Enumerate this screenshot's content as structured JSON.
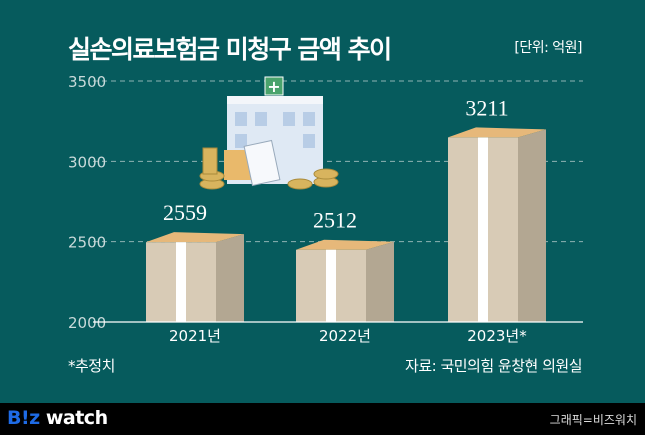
{
  "title": "실손의료보험금 미청구 금액 추이",
  "unit": "[단위: 억원]",
  "note": "*추정치",
  "source": "자료: 국민의힘 윤창현 의원실",
  "footer": {
    "logo_brand": "B!z",
    "logo_word": "watch",
    "credit": "그래픽=비즈워치"
  },
  "colors": {
    "background": "#065b5d",
    "bar_front": "#d8cbb6",
    "bar_side": "#b3a792",
    "band": "#ffffff",
    "footer": "#000000"
  },
  "chart_data": {
    "type": "bar",
    "title": "실손의료보험금 미청구 금액 추이",
    "categories": [
      "2021년",
      "2022년",
      "2023년*"
    ],
    "values": [
      2559,
      2512,
      3211
    ],
    "value_labels": [
      "2559",
      "2512",
      "3211"
    ],
    "ylim": [
      2000,
      3500
    ],
    "yticks": [
      2000,
      2500,
      3000,
      3500
    ],
    "ytick_labels": [
      "2000",
      "2500",
      "3000",
      "3500"
    ],
    "grid": true,
    "ylabel": "",
    "xlabel": ""
  }
}
